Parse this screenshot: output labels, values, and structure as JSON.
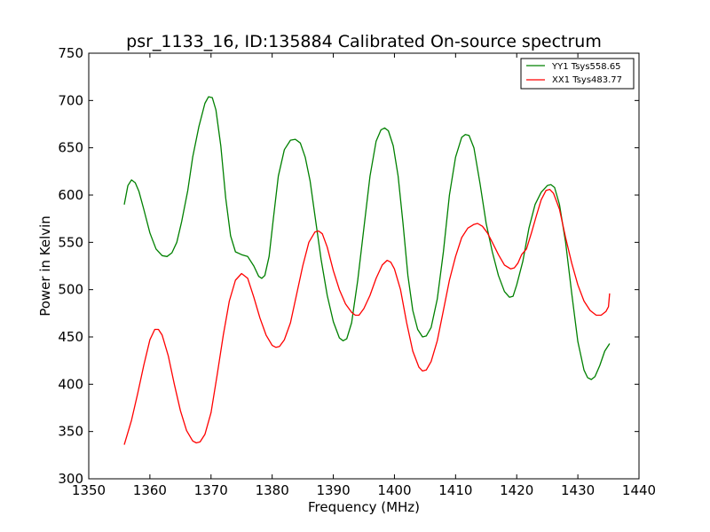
{
  "chart_data": {
    "type": "line",
    "title": "psr_1133_16, ID:135884 Calibrated On-source spectrum",
    "xlabel": "Frequency (MHz)",
    "ylabel": "Power in Kelvin",
    "xlim": [
      1350,
      1440
    ],
    "ylim": [
      300,
      750
    ],
    "xticks": [
      1350,
      1360,
      1370,
      1380,
      1390,
      1400,
      1410,
      1420,
      1430,
      1440
    ],
    "yticks": [
      300,
      350,
      400,
      450,
      500,
      550,
      600,
      650,
      700,
      750
    ],
    "grid": false,
    "legend_position": "top-right",
    "series": [
      {
        "name": "YY1 Tsys558.65",
        "color": "#008000",
        "points": [
          [
            1355.8,
            590
          ],
          [
            1356.4,
            610
          ],
          [
            1357.0,
            616
          ],
          [
            1357.6,
            613
          ],
          [
            1358.2,
            604
          ],
          [
            1359.0,
            585
          ],
          [
            1360.0,
            560
          ],
          [
            1361.0,
            543
          ],
          [
            1362.0,
            536
          ],
          [
            1362.8,
            535
          ],
          [
            1363.6,
            539
          ],
          [
            1364.4,
            550
          ],
          [
            1365.2,
            572
          ],
          [
            1366.2,
            605
          ],
          [
            1367.0,
            640
          ],
          [
            1368.0,
            672
          ],
          [
            1369.0,
            697
          ],
          [
            1369.6,
            704
          ],
          [
            1370.2,
            703
          ],
          [
            1370.8,
            690
          ],
          [
            1371.6,
            652
          ],
          [
            1372.4,
            597
          ],
          [
            1373.2,
            557
          ],
          [
            1374.0,
            540
          ],
          [
            1375.0,
            537
          ],
          [
            1376.0,
            535
          ],
          [
            1377.0,
            525
          ],
          [
            1377.8,
            514
          ],
          [
            1378.3,
            512
          ],
          [
            1378.8,
            515
          ],
          [
            1379.5,
            535
          ],
          [
            1380.2,
            575
          ],
          [
            1381.0,
            620
          ],
          [
            1382.0,
            648
          ],
          [
            1383.0,
            658
          ],
          [
            1383.8,
            659
          ],
          [
            1384.6,
            655
          ],
          [
            1385.4,
            640
          ],
          [
            1386.2,
            615
          ],
          [
            1387.0,
            578
          ],
          [
            1388.0,
            532
          ],
          [
            1389.0,
            494
          ],
          [
            1390.0,
            466
          ],
          [
            1391.0,
            449
          ],
          [
            1391.6,
            446
          ],
          [
            1392.2,
            448
          ],
          [
            1393.0,
            465
          ],
          [
            1394.0,
            510
          ],
          [
            1395.0,
            565
          ],
          [
            1396.0,
            620
          ],
          [
            1397.0,
            657
          ],
          [
            1397.8,
            669
          ],
          [
            1398.4,
            671
          ],
          [
            1399.0,
            668
          ],
          [
            1399.8,
            652
          ],
          [
            1400.6,
            620
          ],
          [
            1401.4,
            570
          ],
          [
            1402.2,
            515
          ],
          [
            1403.0,
            478
          ],
          [
            1403.8,
            458
          ],
          [
            1404.6,
            450
          ],
          [
            1405.2,
            451
          ],
          [
            1406.0,
            460
          ],
          [
            1407.0,
            490
          ],
          [
            1408.0,
            540
          ],
          [
            1409.0,
            600
          ],
          [
            1410.0,
            640
          ],
          [
            1411.0,
            661
          ],
          [
            1411.6,
            664
          ],
          [
            1412.2,
            663
          ],
          [
            1413.0,
            650
          ],
          [
            1414.0,
            612
          ],
          [
            1415.0,
            570
          ],
          [
            1416.0,
            540
          ],
          [
            1417.0,
            515
          ],
          [
            1418.0,
            498
          ],
          [
            1418.8,
            492
          ],
          [
            1419.4,
            493
          ],
          [
            1420.0,
            505
          ],
          [
            1421.0,
            530
          ],
          [
            1422.0,
            565
          ],
          [
            1423.0,
            590
          ],
          [
            1424.0,
            603
          ],
          [
            1425.0,
            610
          ],
          [
            1425.6,
            611
          ],
          [
            1426.2,
            608
          ],
          [
            1427.0,
            590
          ],
          [
            1428.0,
            550
          ],
          [
            1429.0,
            496
          ],
          [
            1430.0,
            445
          ],
          [
            1431.0,
            415
          ],
          [
            1431.6,
            407
          ],
          [
            1432.2,
            405
          ],
          [
            1432.8,
            408
          ],
          [
            1433.6,
            420
          ],
          [
            1434.4,
            435
          ],
          [
            1435.2,
            443
          ]
        ]
      },
      {
        "name": "XX1 Tsys483.77",
        "color": "#ff0000",
        "points": [
          [
            1355.8,
            336
          ],
          [
            1357.0,
            362
          ],
          [
            1358.0,
            390
          ],
          [
            1359.0,
            420
          ],
          [
            1360.0,
            447
          ],
          [
            1360.8,
            458
          ],
          [
            1361.4,
            458
          ],
          [
            1362.0,
            452
          ],
          [
            1363.0,
            430
          ],
          [
            1364.0,
            400
          ],
          [
            1365.0,
            372
          ],
          [
            1366.0,
            351
          ],
          [
            1367.0,
            340
          ],
          [
            1367.6,
            338
          ],
          [
            1368.2,
            339
          ],
          [
            1369.0,
            347
          ],
          [
            1370.0,
            370
          ],
          [
            1371.0,
            410
          ],
          [
            1372.0,
            452
          ],
          [
            1373.0,
            488
          ],
          [
            1374.0,
            510
          ],
          [
            1375.0,
            517
          ],
          [
            1376.0,
            512
          ],
          [
            1377.0,
            492
          ],
          [
            1378.0,
            470
          ],
          [
            1379.0,
            452
          ],
          [
            1380.0,
            441
          ],
          [
            1380.6,
            439
          ],
          [
            1381.2,
            440
          ],
          [
            1382.0,
            447
          ],
          [
            1383.0,
            465
          ],
          [
            1384.0,
            495
          ],
          [
            1385.0,
            525
          ],
          [
            1386.0,
            550
          ],
          [
            1387.0,
            561
          ],
          [
            1387.6,
            562
          ],
          [
            1388.2,
            559
          ],
          [
            1389.0,
            545
          ],
          [
            1390.0,
            520
          ],
          [
            1391.0,
            500
          ],
          [
            1392.0,
            485
          ],
          [
            1393.0,
            476
          ],
          [
            1393.6,
            473
          ],
          [
            1394.2,
            473
          ],
          [
            1395.0,
            480
          ],
          [
            1396.0,
            494
          ],
          [
            1397.0,
            512
          ],
          [
            1398.0,
            526
          ],
          [
            1398.8,
            531
          ],
          [
            1399.4,
            529
          ],
          [
            1400.0,
            522
          ],
          [
            1401.0,
            500
          ],
          [
            1402.0,
            465
          ],
          [
            1403.0,
            435
          ],
          [
            1404.0,
            418
          ],
          [
            1404.6,
            414
          ],
          [
            1405.2,
            415
          ],
          [
            1406.0,
            424
          ],
          [
            1407.0,
            446
          ],
          [
            1408.0,
            478
          ],
          [
            1409.0,
            510
          ],
          [
            1410.0,
            535
          ],
          [
            1411.0,
            555
          ],
          [
            1412.0,
            565
          ],
          [
            1413.0,
            569
          ],
          [
            1413.6,
            570
          ],
          [
            1414.4,
            567
          ],
          [
            1415.2,
            560
          ],
          [
            1416.0,
            550
          ],
          [
            1417.0,
            537
          ],
          [
            1418.0,
            526
          ],
          [
            1419.0,
            522
          ],
          [
            1419.6,
            523
          ],
          [
            1420.2,
            528
          ],
          [
            1420.8,
            537
          ],
          [
            1421.6,
            543
          ],
          [
            1422.4,
            560
          ],
          [
            1423.2,
            578
          ],
          [
            1424.0,
            595
          ],
          [
            1424.8,
            605
          ],
          [
            1425.4,
            606
          ],
          [
            1426.0,
            602
          ],
          [
            1427.0,
            585
          ],
          [
            1428.0,
            555
          ],
          [
            1429.0,
            528
          ],
          [
            1430.0,
            505
          ],
          [
            1431.0,
            488
          ],
          [
            1432.0,
            478
          ],
          [
            1433.0,
            473
          ],
          [
            1433.8,
            473
          ],
          [
            1434.6,
            477
          ],
          [
            1435.0,
            482
          ],
          [
            1435.2,
            496
          ]
        ]
      }
    ]
  }
}
